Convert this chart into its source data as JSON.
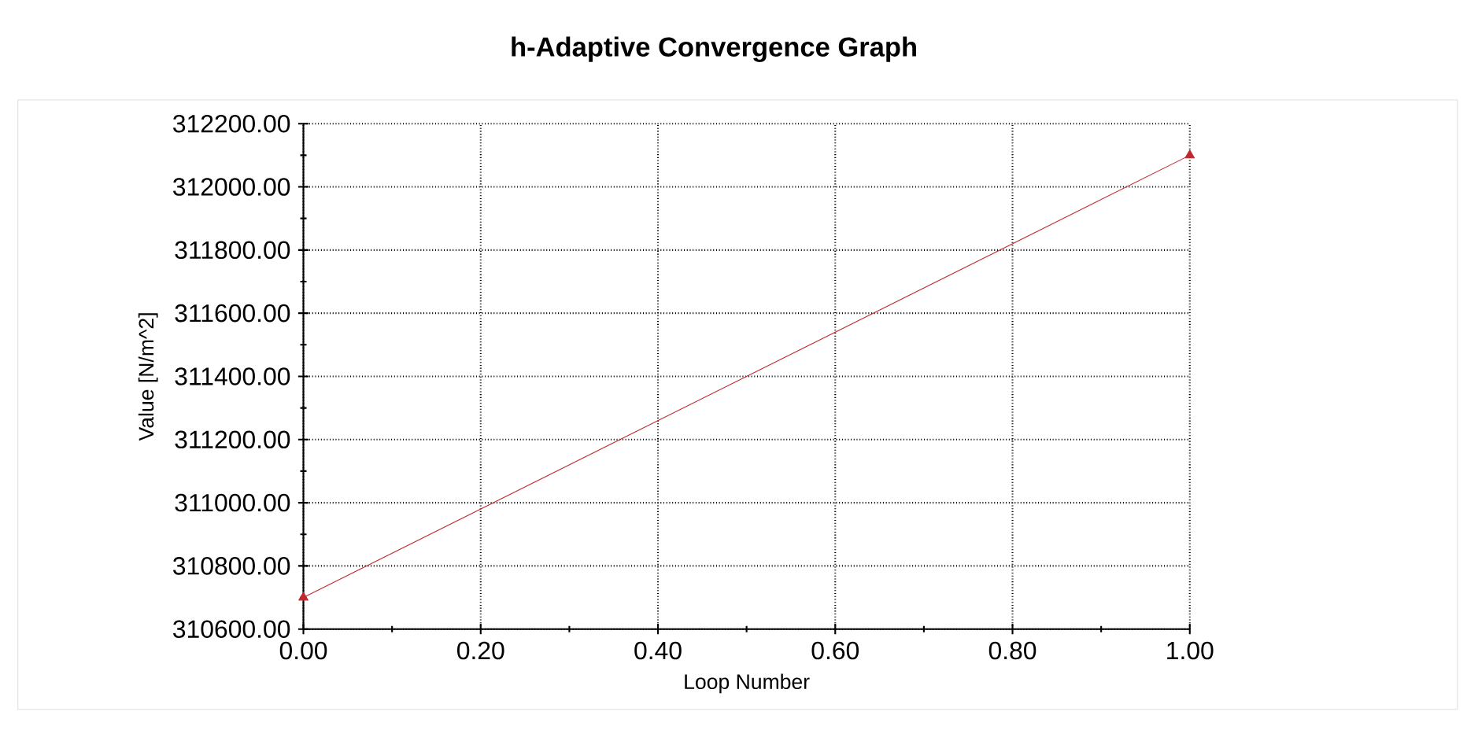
{
  "chart_data": {
    "type": "line",
    "title": "h-Adaptive Convergence Graph",
    "xlabel": "Loop Number",
    "ylabel": "Value [N/m^2]",
    "x": [
      0,
      1
    ],
    "series": [
      {
        "color": "#c0282d",
        "values": [
          310700,
          312100
        ]
      }
    ],
    "xlim": [
      0,
      1
    ],
    "ylim": [
      310600,
      312200
    ],
    "xticks": [
      {
        "value": 0,
        "label": "0.00"
      },
      {
        "value": 0.2,
        "label": "0.20"
      },
      {
        "value": 0.4,
        "label": "0.40"
      },
      {
        "value": 0.6,
        "label": "0.60"
      },
      {
        "value": 0.8,
        "label": "0.80"
      },
      {
        "value": 1,
        "label": "1.00"
      }
    ],
    "yticks": [
      {
        "value": 310600,
        "label": "310600.00"
      },
      {
        "value": 310800,
        "label": "310800.00"
      },
      {
        "value": 311000,
        "label": "311000.00"
      },
      {
        "value": 311200,
        "label": "311200.00"
      },
      {
        "value": 311400,
        "label": "311400.00"
      },
      {
        "value": 311600,
        "label": "311600.00"
      },
      {
        "value": 311800,
        "label": "311800.00"
      },
      {
        "value": 312000,
        "label": "312000.00"
      },
      {
        "value": 312200,
        "label": "312200.00"
      }
    ],
    "grid": true,
    "marker": "triangle",
    "line_style": "solid"
  }
}
